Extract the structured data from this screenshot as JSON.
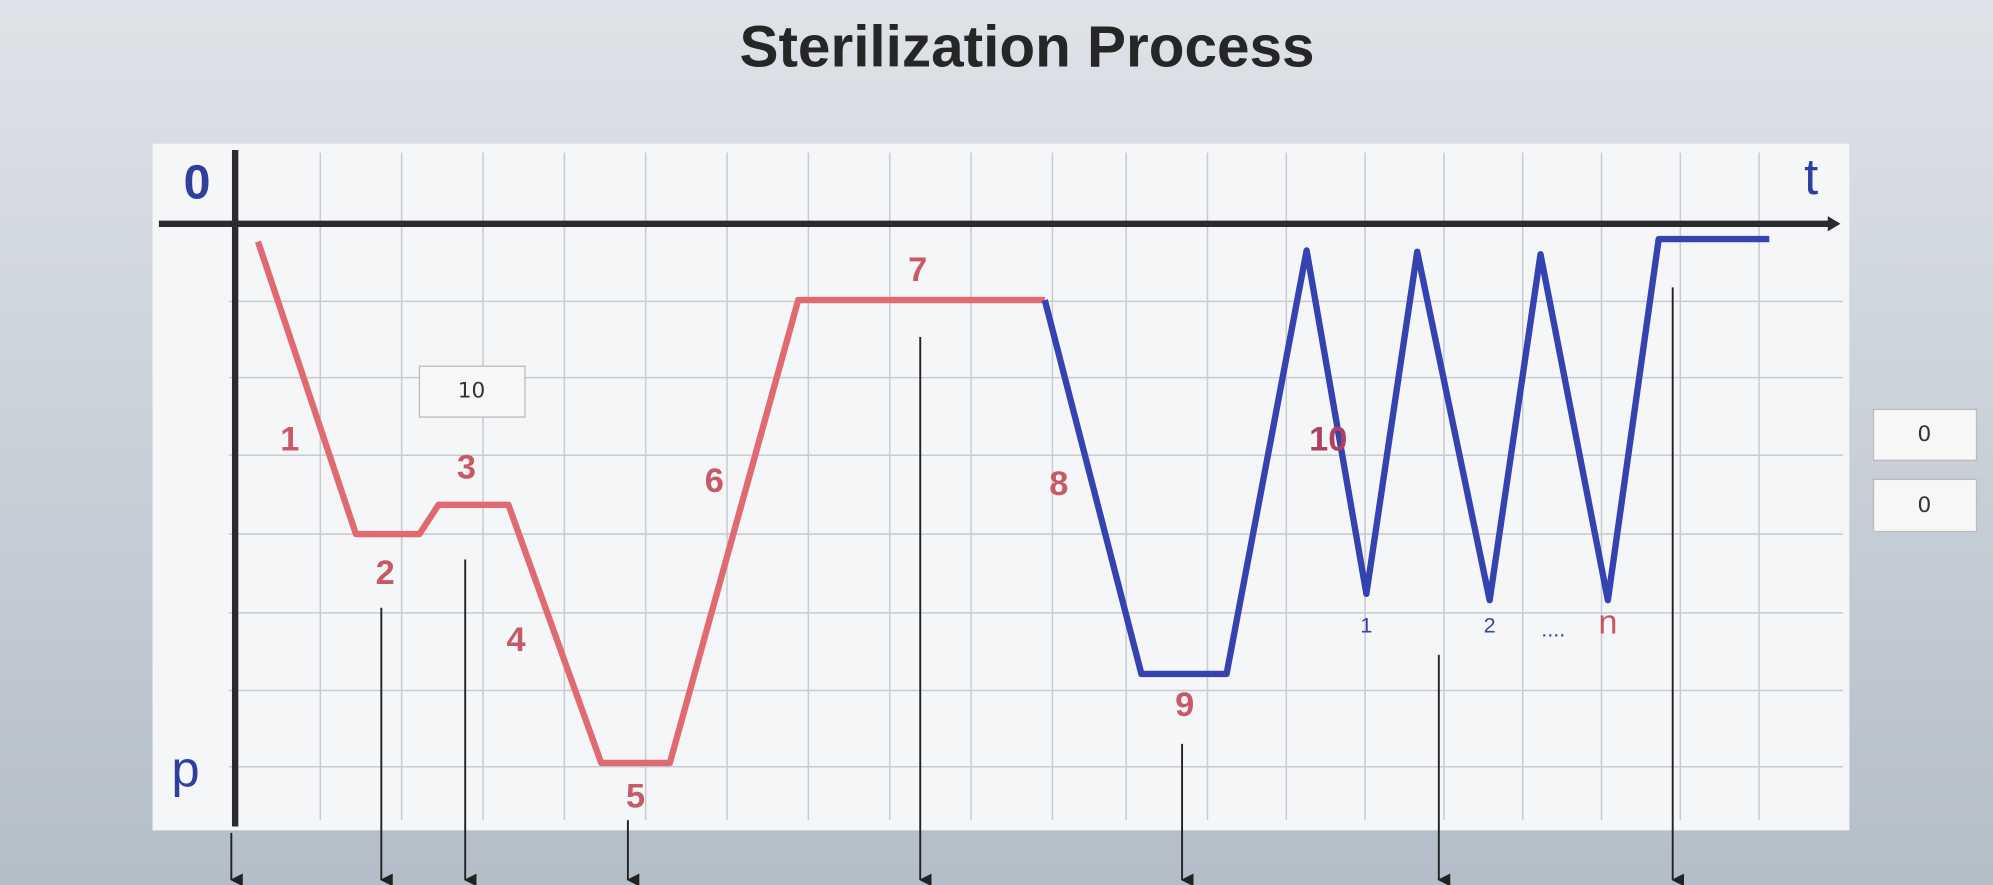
{
  "header": {
    "title": "Sterilization Process"
  },
  "diagram": {
    "axis_labels": {
      "origin": "0",
      "time": "t",
      "pressure": "p"
    },
    "phase_labels": [
      "1",
      "2",
      "3",
      "4",
      "5",
      "6",
      "7",
      "8",
      "9",
      "10"
    ],
    "cycle_labels": [
      "1",
      "2",
      "....",
      "n"
    ]
  },
  "fields": {
    "setpoint": "10",
    "right_top": "0",
    "right_bottom": "0"
  }
}
